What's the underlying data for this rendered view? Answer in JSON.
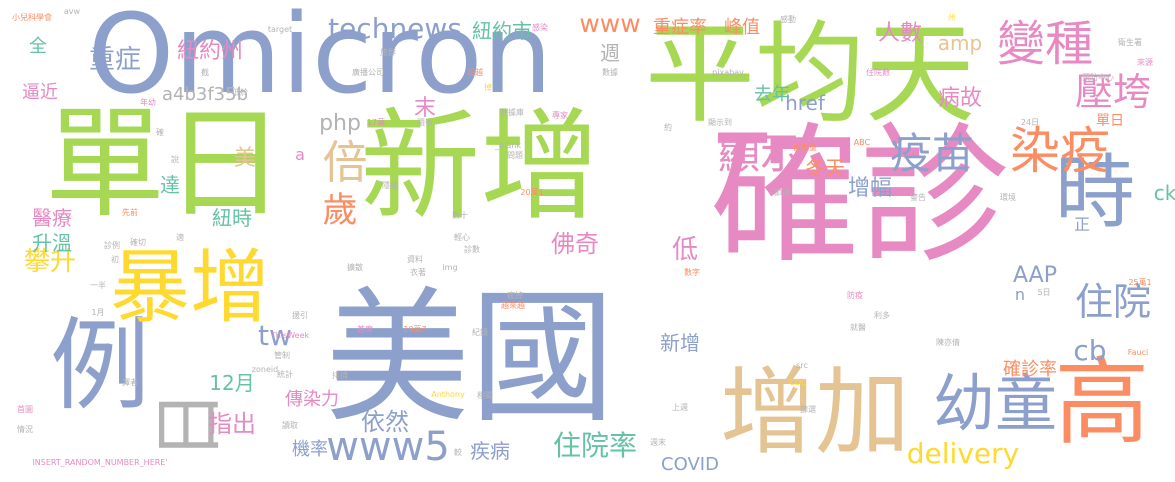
{
  "palette": {
    "green": "#a6d854",
    "blue": "#8da0cb",
    "pink": "#e78ac3",
    "orange": "#fc8d62",
    "yellow": "#ffd92f",
    "teal": "#66c2a5",
    "tan": "#e5c494",
    "gray": "#b3b3b3"
  },
  "words": [
    {
      "text": "確診",
      "color": "pink"
    },
    {
      "text": "美國",
      "color": "blue"
    },
    {
      "text": "新增",
      "color": "green"
    },
    {
      "text": "單日",
      "color": "green"
    },
    {
      "text": "平均天",
      "color": "green"
    },
    {
      "text": "Omicron",
      "color": "blue"
    },
    {
      "text": "增加",
      "color": "tan"
    },
    {
      "text": "例",
      "color": "blue"
    },
    {
      "text": "高",
      "color": "orange"
    },
    {
      "text": "時",
      "color": "blue"
    },
    {
      "text": "暴增",
      "color": "yellow"
    },
    {
      "text": "日",
      "color": "gray"
    },
    {
      "text": "幼童",
      "color": "blue"
    },
    {
      "text": "變種",
      "color": "pink"
    },
    {
      "text": "染疫",
      "color": "orange"
    },
    {
      "text": "疫苗",
      "color": "blue"
    },
    {
      "text": "顯示",
      "color": "pink"
    },
    {
      "text": "壓垮",
      "color": "pink"
    },
    {
      "text": "住院",
      "color": "blue"
    },
    {
      "text": "倍",
      "color": "tan"
    },
    {
      "text": "歲",
      "color": "orange"
    },
    {
      "text": "technews",
      "color": "blue"
    },
    {
      "text": "紐約市",
      "color": "teal"
    },
    {
      "text": "紐約州",
      "color": "pink"
    },
    {
      "text": "重症",
      "color": "blue"
    },
    {
      "text": "www",
      "color": "orange"
    },
    {
      "text": "重症率",
      "color": "orange"
    },
    {
      "text": "峰值",
      "color": "orange"
    },
    {
      "text": "攀升",
      "color": "yellow"
    },
    {
      "text": "住院率",
      "color": "teal"
    },
    {
      "text": "www5",
      "color": "blue"
    },
    {
      "text": "疾病",
      "color": "blue"
    },
    {
      "text": "delivery",
      "color": "yellow"
    },
    {
      "text": "COVID",
      "color": "blue"
    },
    {
      "text": "tw",
      "color": "blue"
    },
    {
      "text": "12月",
      "color": "teal"
    },
    {
      "text": "指出",
      "color": "pink"
    },
    {
      "text": "依然",
      "color": "blue"
    },
    {
      "text": "機率",
      "color": "blue"
    },
    {
      "text": "傳染力",
      "color": "pink"
    },
    {
      "text": "佛奇",
      "color": "pink"
    },
    {
      "text": "低",
      "color": "pink"
    },
    {
      "text": "增幅",
      "color": "blue"
    },
    {
      "text": "冬天",
      "color": "orange"
    },
    {
      "text": "病故",
      "color": "pink"
    },
    {
      "text": "去年",
      "color": "teal"
    },
    {
      "text": "人數",
      "color": "pink"
    },
    {
      "text": "amp",
      "color": "tan"
    },
    {
      "text": "週",
      "color": "gray"
    },
    {
      "text": "末",
      "color": "pink"
    },
    {
      "text": "php",
      "color": "gray"
    },
    {
      "text": "href",
      "color": "blue"
    },
    {
      "text": "a4b3f35b",
      "color": "gray"
    },
    {
      "text": "達",
      "color": "teal"
    },
    {
      "text": "美",
      "color": "tan"
    },
    {
      "text": "紐時",
      "color": "teal"
    },
    {
      "text": "升溫",
      "color": "teal"
    },
    {
      "text": "醫療",
      "color": "pink"
    },
    {
      "text": "逼近",
      "color": "pink"
    },
    {
      "text": "全",
      "color": "teal"
    },
    {
      "text": "新增",
      "color": "blue"
    },
    {
      "text": "cb",
      "color": "blue"
    },
    {
      "text": "AAP",
      "color": "blue"
    },
    {
      "text": "確診率",
      "color": "orange"
    },
    {
      "text": "ck",
      "color": "teal"
    },
    {
      "text": "單日",
      "color": "orange"
    },
    {
      "text": "正",
      "color": "blue"
    },
    {
      "text": "n",
      "color": "blue"
    },
    {
      "text": "a",
      "color": "pink"
    },
    {
      "text": "小兒科學會",
      "color": "orange"
    },
    {
      "text": "avw",
      "color": "gray"
    },
    {
      "text": "target",
      "color": "gray"
    },
    {
      "text": "州",
      "color": "yellow"
    },
    {
      "text": "衛生署",
      "color": "gray"
    },
    {
      "text": "來源",
      "color": "pink"
    },
    {
      "text": "感動",
      "color": "gray"
    },
    {
      "text": "住院數",
      "color": "pink"
    },
    {
      "text": "預防中心",
      "color": "gray"
    },
    {
      "text": "廣播公司",
      "color": "gray"
    },
    {
      "text": "旅群",
      "color": "gray"
    },
    {
      "text": "超越",
      "color": "orange"
    },
    {
      "text": "數據",
      "color": "gray"
    },
    {
      "text": "pixabay",
      "color": "gray"
    },
    {
      "text": "數據庫",
      "color": "gray"
    },
    {
      "text": "年幼",
      "color": "pink"
    },
    {
      "text": "低於",
      "color": "gray"
    },
    {
      "text": "隨後",
      "color": "gray"
    },
    {
      "text": "17萬",
      "color": "pink"
    },
    {
      "text": "顯示到",
      "color": "gray"
    },
    {
      "text": "專家",
      "color": "pink"
    },
    {
      "text": "約",
      "color": "gray"
    },
    {
      "text": "ABC",
      "color": "orange"
    },
    {
      "text": "24日",
      "color": "gray"
    },
    {
      "text": "感染",
      "color": "pink"
    },
    {
      "text": "截",
      "color": "gray"
    },
    {
      "text": "掉",
      "color": "yellow"
    },
    {
      "text": "_blank",
      "color": "gray"
    },
    {
      "text": "說",
      "color": "gray"
    },
    {
      "text": "確",
      "color": "gray"
    },
    {
      "text": "醫療量",
      "color": "orange"
    },
    {
      "text": "隱藏",
      "color": "gray"
    },
    {
      "text": "問題",
      "color": "gray"
    },
    {
      "text": "數十",
      "color": "gray"
    },
    {
      "text": "20萬1",
      "color": "orange"
    },
    {
      "text": "節目",
      "color": "gray"
    },
    {
      "text": "警告",
      "color": "gray"
    },
    {
      "text": "環境",
      "color": "gray"
    },
    {
      "text": "先前",
      "color": "orange"
    },
    {
      "text": "診例",
      "color": "gray"
    },
    {
      "text": "確切",
      "color": "gray"
    },
    {
      "text": "初",
      "color": "gray"
    },
    {
      "text": "適",
      "color": "gray"
    },
    {
      "text": "輕心",
      "color": "gray"
    },
    {
      "text": "診數",
      "color": "gray"
    },
    {
      "text": "img",
      "color": "gray"
    },
    {
      "text": "數字",
      "color": "orange"
    },
    {
      "text": "擴散",
      "color": "gray"
    },
    {
      "text": "資料",
      "color": "gray"
    },
    {
      "text": "衣著",
      "color": "gray"
    },
    {
      "text": "一半",
      "color": "gray"
    },
    {
      "text": "1月",
      "color": "gray"
    },
    {
      "text": "援引",
      "color": "gray"
    },
    {
      "text": "ThisWeek",
      "color": "pink"
    },
    {
      "text": "首席",
      "color": "pink"
    },
    {
      "text": "19萬7",
      "color": "orange"
    },
    {
      "text": "越來越",
      "color": "orange"
    },
    {
      "text": "疲掉",
      "color": "gray"
    },
    {
      "text": "防疫",
      "color": "pink"
    },
    {
      "text": "利多",
      "color": "gray"
    },
    {
      "text": "5日",
      "color": "gray"
    },
    {
      "text": "25萬1",
      "color": "orange"
    },
    {
      "text": "就醫",
      "color": "gray"
    },
    {
      "text": "陳亦倩",
      "color": "gray"
    },
    {
      "text": "Fauci",
      "color": "orange"
    },
    {
      "text": "管制",
      "color": "gray"
    },
    {
      "text": "zoneid",
      "color": "gray"
    },
    {
      "text": "紀錄",
      "color": "gray"
    },
    {
      "text": "src",
      "color": "gray"
    },
    {
      "text": "統計",
      "color": "gray"
    },
    {
      "text": "譯者",
      "color": "gray"
    },
    {
      "text": "排擠",
      "color": "gray"
    },
    {
      "text": "CDC",
      "color": "yellow"
    },
    {
      "text": "篩選",
      "color": "gray"
    },
    {
      "text": "Anthony",
      "color": "yellow"
    },
    {
      "text": "相關",
      "color": "gray"
    },
    {
      "text": "上週",
      "color": "gray"
    },
    {
      "text": "首圖",
      "color": "pink"
    },
    {
      "text": "情況",
      "color": "gray"
    },
    {
      "text": "較",
      "color": "gray"
    },
    {
      "text": "週末",
      "color": "gray"
    },
    {
      "text": "讀取",
      "color": "gray"
    },
    {
      "text": "INSERT_RANDOM_NUMBER_HERE'",
      "color": "pink"
    }
  ]
}
